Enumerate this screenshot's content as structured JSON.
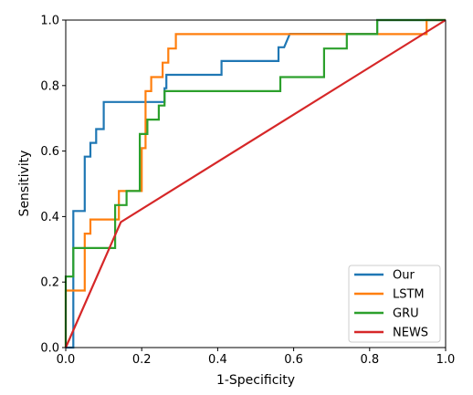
{
  "chart_data": {
    "type": "line",
    "title": "",
    "xlabel": "1-Specificity",
    "ylabel": "Sensitivity",
    "xlim": [
      0.0,
      1.0
    ],
    "ylim": [
      0.0,
      1.0
    ],
    "xticks": [
      "0.0",
      "0.2",
      "0.4",
      "0.6",
      "0.8",
      "1.0"
    ],
    "yticks": [
      "0.0",
      "0.2",
      "0.4",
      "0.6",
      "0.8",
      "1.0"
    ],
    "grid": false,
    "legend_position": "bottom-right",
    "series": [
      {
        "name": "Our",
        "color": "#1f77b4",
        "points": [
          [
            0.0,
            0.0
          ],
          [
            0.02,
            0.0
          ],
          [
            0.02,
            0.417
          ],
          [
            0.05,
            0.417
          ],
          [
            0.05,
            0.583
          ],
          [
            0.065,
            0.583
          ],
          [
            0.065,
            0.625
          ],
          [
            0.08,
            0.625
          ],
          [
            0.08,
            0.667
          ],
          [
            0.1,
            0.667
          ],
          [
            0.1,
            0.75
          ],
          [
            0.26,
            0.75
          ],
          [
            0.26,
            0.792
          ],
          [
            0.265,
            0.792
          ],
          [
            0.265,
            0.833
          ],
          [
            0.41,
            0.833
          ],
          [
            0.41,
            0.875
          ],
          [
            0.56,
            0.875
          ],
          [
            0.56,
            0.917
          ],
          [
            0.575,
            0.917
          ],
          [
            0.59,
            0.958
          ],
          [
            0.82,
            0.958
          ],
          [
            0.82,
            1.0
          ],
          [
            1.0,
            1.0
          ]
        ]
      },
      {
        "name": "LSTM",
        "color": "#ff7f0e",
        "points": [
          [
            0.0,
            0.0
          ],
          [
            0.0,
            0.174
          ],
          [
            0.05,
            0.174
          ],
          [
            0.05,
            0.348
          ],
          [
            0.065,
            0.348
          ],
          [
            0.065,
            0.391
          ],
          [
            0.14,
            0.391
          ],
          [
            0.14,
            0.478
          ],
          [
            0.2,
            0.478
          ],
          [
            0.2,
            0.609
          ],
          [
            0.21,
            0.609
          ],
          [
            0.21,
            0.783
          ],
          [
            0.225,
            0.783
          ],
          [
            0.225,
            0.826
          ],
          [
            0.255,
            0.826
          ],
          [
            0.255,
            0.87
          ],
          [
            0.27,
            0.87
          ],
          [
            0.27,
            0.913
          ],
          [
            0.29,
            0.913
          ],
          [
            0.29,
            0.957
          ],
          [
            0.95,
            0.957
          ],
          [
            0.95,
            1.0
          ],
          [
            1.0,
            1.0
          ]
        ]
      },
      {
        "name": "GRU",
        "color": "#2ca02c",
        "points": [
          [
            0.0,
            0.0
          ],
          [
            0.0,
            0.217
          ],
          [
            0.02,
            0.217
          ],
          [
            0.02,
            0.304
          ],
          [
            0.13,
            0.304
          ],
          [
            0.13,
            0.435
          ],
          [
            0.16,
            0.435
          ],
          [
            0.16,
            0.478
          ],
          [
            0.195,
            0.478
          ],
          [
            0.195,
            0.652
          ],
          [
            0.215,
            0.652
          ],
          [
            0.215,
            0.696
          ],
          [
            0.245,
            0.696
          ],
          [
            0.245,
            0.739
          ],
          [
            0.26,
            0.739
          ],
          [
            0.26,
            0.783
          ],
          [
            0.565,
            0.783
          ],
          [
            0.565,
            0.826
          ],
          [
            0.68,
            0.826
          ],
          [
            0.68,
            0.913
          ],
          [
            0.74,
            0.913
          ],
          [
            0.74,
            0.957
          ],
          [
            0.82,
            0.957
          ],
          [
            0.82,
            1.0
          ],
          [
            1.0,
            1.0
          ]
        ]
      },
      {
        "name": "NEWS",
        "color": "#d62728",
        "points": [
          [
            0.0,
            0.0
          ],
          [
            0.145,
            0.383
          ],
          [
            1.0,
            1.0
          ]
        ]
      }
    ]
  }
}
